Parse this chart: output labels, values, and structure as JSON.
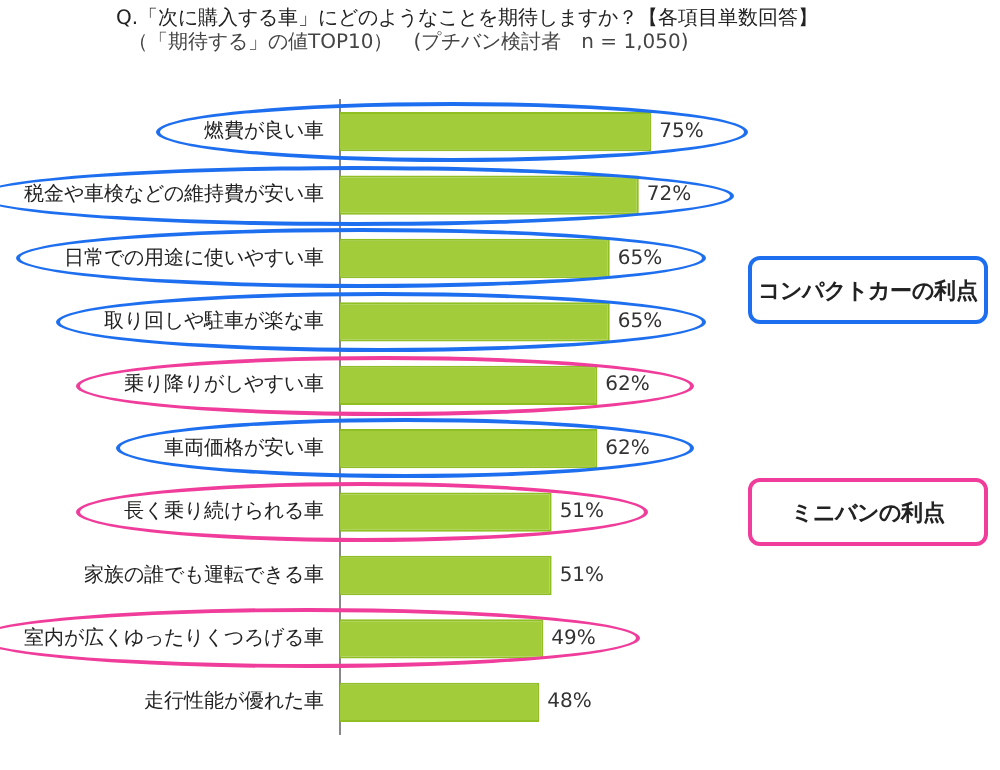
{
  "chart_data": {
    "type": "bar",
    "orientation": "horizontal",
    "title": "Q.「次に購入する車」にどのようなことを期待しますか？【各項目単数回答】",
    "subtitle": "（「期待する」の値TOP10）　(プチバン検討者　n = 1,050)",
    "categories": [
      "燃費が良い車",
      "税金や車検などの維持費が安い車",
      "日常での用途に使いやすい車",
      "取り回しや駐車が楽な車",
      "乗り降りがしやすい車",
      "車両価格が安い車",
      "長く乗り続けられる車",
      "家族の誰でも運転できる車",
      "室内が広くゆったりくつろげる車",
      "走行性能が優れた車"
    ],
    "values": [
      75,
      72,
      65,
      65,
      62,
      62,
      51,
      51,
      49,
      48
    ],
    "value_labels": [
      "75%",
      "72%",
      "65%",
      "65%",
      "62%",
      "62%",
      "51%",
      "51%",
      "49%",
      "48%"
    ],
    "color": "#a2cc3a",
    "annotations": [
      "コンパクトカーの利点",
      "ミニバンの利点"
    ]
  }
}
